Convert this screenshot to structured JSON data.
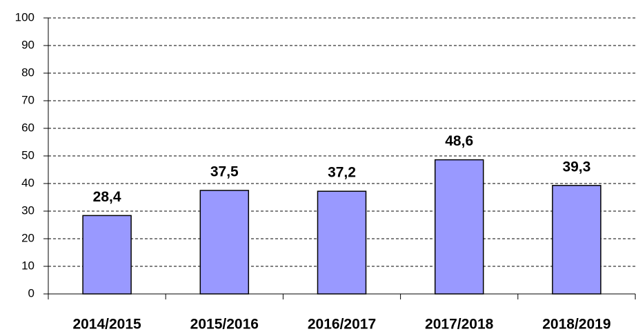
{
  "chart_data": {
    "type": "bar",
    "categories": [
      "2014/2015",
      "2015/2016",
      "2016/2017",
      "2017/2018",
      "2018/2019"
    ],
    "values": [
      28.4,
      37.5,
      37.2,
      48.6,
      39.3
    ],
    "value_labels": [
      "28,4",
      "37,5",
      "37,2",
      "48,6",
      "39,3"
    ],
    "color": "#9999ff",
    "ylim": [
      0,
      100
    ],
    "yticks": [
      0,
      10,
      20,
      30,
      40,
      50,
      60,
      70,
      80,
      90,
      100
    ],
    "grid": true
  }
}
